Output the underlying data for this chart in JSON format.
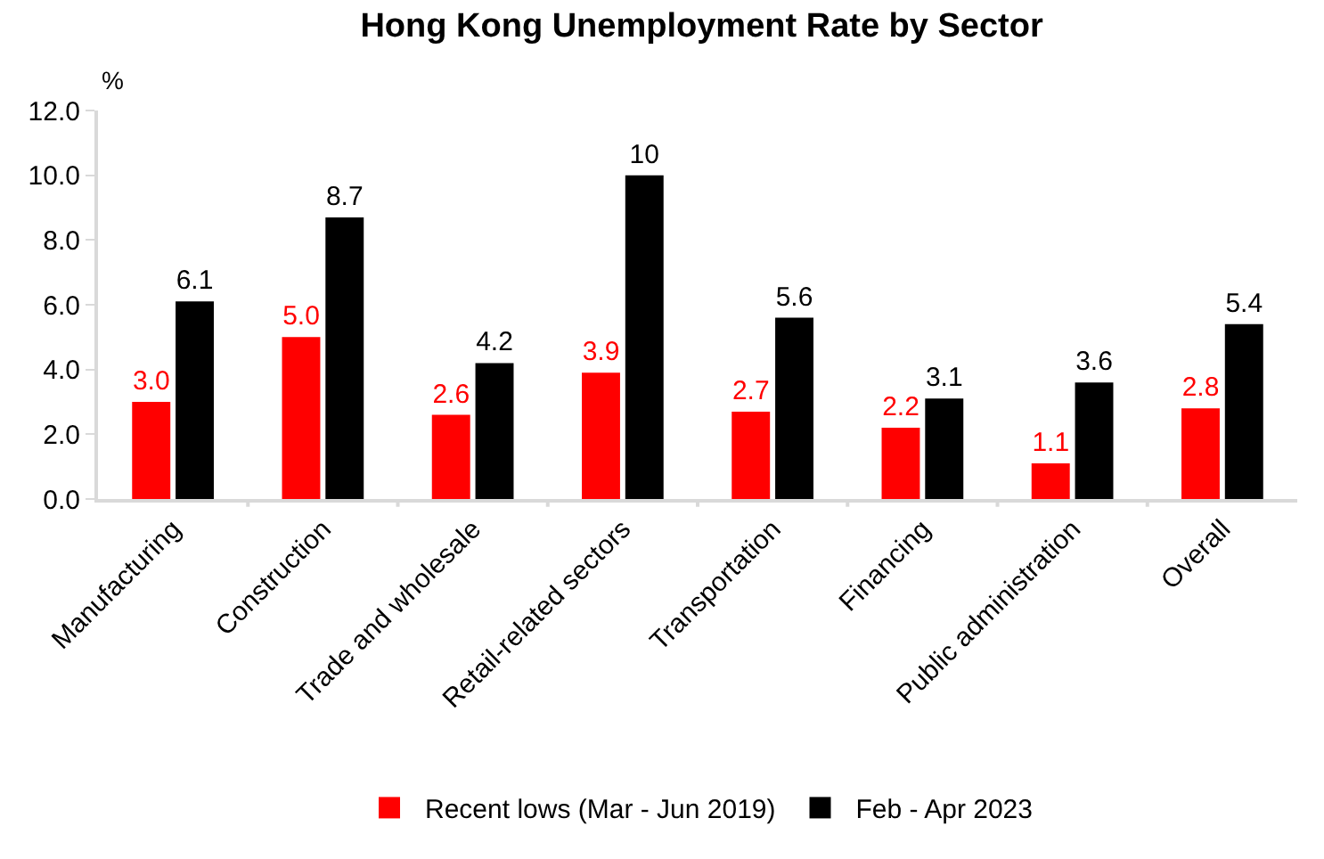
{
  "chart_data": {
    "type": "bar",
    "title": "Hong Kong Unemployment Rate by Sector",
    "ylabel": "%",
    "categories": [
      "Manufacturing",
      "Construction",
      "Trade and wholesale",
      "Retail-related sectors",
      "Transportation",
      "Financing",
      "Public administration",
      "Overall"
    ],
    "series": [
      {
        "name": "Recent lows (Mar - Jun 2019)",
        "color": "#ff0000",
        "values": [
          3.0,
          5.0,
          2.6,
          3.9,
          2.7,
          2.2,
          1.1,
          2.8
        ],
        "value_labels": [
          "3.0",
          "5.0",
          "2.6",
          "3.9",
          "2.7",
          "2.2",
          "1.1",
          "2.8"
        ]
      },
      {
        "name": "Feb - Apr 2023",
        "color": "#000000",
        "values": [
          6.1,
          8.7,
          4.2,
          10,
          5.6,
          3.1,
          3.6,
          5.4
        ],
        "value_labels": [
          "6.1",
          "8.7",
          "4.2",
          "10",
          "5.6",
          "3.1",
          "3.6",
          "5.4"
        ]
      }
    ],
    "ylim": [
      0,
      12
    ],
    "yticks": [
      {
        "value": 0,
        "label": "0.0"
      },
      {
        "value": 2,
        "label": "2.0"
      },
      {
        "value": 4,
        "label": "4.0"
      },
      {
        "value": 6,
        "label": "6.0"
      },
      {
        "value": 8,
        "label": "8.0"
      },
      {
        "value": 10,
        "label": "10.0"
      },
      {
        "value": 12,
        "label": "12.0"
      }
    ],
    "grid": false,
    "legend": "bottom"
  }
}
